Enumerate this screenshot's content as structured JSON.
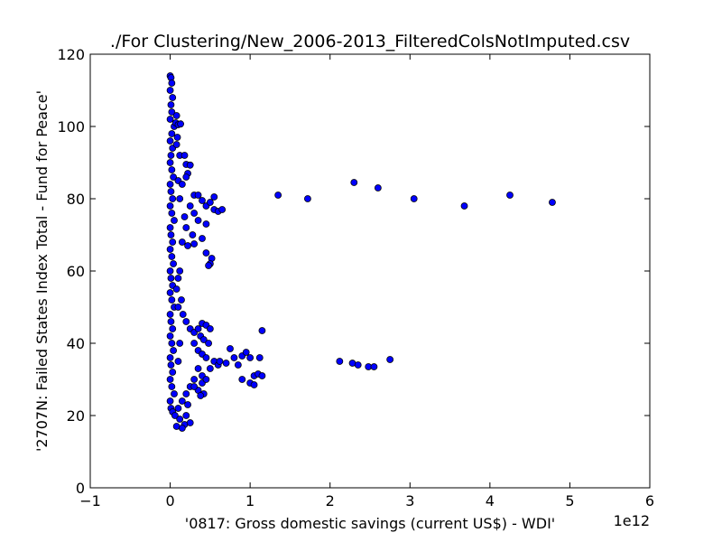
{
  "chart_data": {
    "type": "scatter",
    "title": "./For Clustering/New_2006-2013_FilteredColsNotImputed.csv",
    "xlabel": "'0817: Gross domestic savings  (current US$) - WDI'",
    "ylabel": "'2707N: Failed States Index Total - Fund for Peace'",
    "x_offset_label": "1e12",
    "xlim": [
      -1,
      6
    ],
    "ylim": [
      0,
      120
    ],
    "x_ticks": [
      -1,
      0,
      1,
      2,
      3,
      4,
      5,
      6
    ],
    "x_tick_labels": [
      "−1",
      "0",
      "1",
      "2",
      "3",
      "4",
      "5",
      "6"
    ],
    "y_ticks": [
      0,
      20,
      40,
      60,
      80,
      100,
      120
    ],
    "y_tick_labels": [
      "0",
      "20",
      "40",
      "60",
      "80",
      "100",
      "120"
    ],
    "grid": false,
    "marker_color": "#0000ff",
    "marker_edge_color": "#000000",
    "x_unit_note": "x values in units of 1e12",
    "series": [
      {
        "points": [
          [
            0.0,
            114
          ],
          [
            0.01,
            113.5
          ],
          [
            0.02,
            112
          ],
          [
            0.0,
            110
          ],
          [
            0.03,
            108
          ],
          [
            0.01,
            106
          ],
          [
            0.02,
            104
          ],
          [
            0.0,
            102
          ],
          [
            0.05,
            100
          ],
          [
            0.02,
            98
          ],
          [
            0.0,
            96
          ],
          [
            0.03,
            94
          ],
          [
            0.01,
            92
          ],
          [
            0.0,
            90
          ],
          [
            0.02,
            88
          ],
          [
            0.04,
            86
          ],
          [
            0.0,
            84
          ],
          [
            0.01,
            82
          ],
          [
            0.03,
            80
          ],
          [
            0.0,
            78
          ],
          [
            0.02,
            76
          ],
          [
            0.05,
            74
          ],
          [
            0.0,
            72
          ],
          [
            0.01,
            70
          ],
          [
            0.03,
            68
          ],
          [
            0.0,
            66
          ],
          [
            0.02,
            64
          ],
          [
            0.04,
            62
          ],
          [
            0.0,
            60
          ],
          [
            0.01,
            58
          ],
          [
            0.03,
            56
          ],
          [
            0.0,
            54
          ],
          [
            0.02,
            52
          ],
          [
            0.05,
            50
          ],
          [
            0.0,
            48
          ],
          [
            0.01,
            46
          ],
          [
            0.03,
            44
          ],
          [
            0.0,
            42
          ],
          [
            0.02,
            40
          ],
          [
            0.04,
            38
          ],
          [
            0.0,
            36
          ],
          [
            0.01,
            34
          ],
          [
            0.03,
            32
          ],
          [
            0.0,
            30
          ],
          [
            0.02,
            28
          ],
          [
            0.05,
            26
          ],
          [
            0.0,
            24
          ],
          [
            0.01,
            22
          ],
          [
            0.03,
            21
          ],
          [
            0.06,
            20
          ],
          [
            0.08,
            103
          ],
          [
            0.07,
            101
          ],
          [
            0.1,
            100.5
          ],
          [
            0.13,
            100.7
          ],
          [
            0.09,
            97
          ],
          [
            0.08,
            95
          ],
          [
            0.12,
            92
          ],
          [
            0.18,
            92
          ],
          [
            0.2,
            89.5
          ],
          [
            0.25,
            89.3
          ],
          [
            0.22,
            87
          ],
          [
            0.1,
            85
          ],
          [
            0.15,
            84
          ],
          [
            0.2,
            86
          ],
          [
            0.12,
            80
          ],
          [
            0.3,
            81
          ],
          [
            0.35,
            81
          ],
          [
            0.4,
            79.5
          ],
          [
            0.45,
            78
          ],
          [
            0.5,
            79
          ],
          [
            0.55,
            80.5
          ],
          [
            0.55,
            77
          ],
          [
            0.6,
            76.5
          ],
          [
            0.65,
            77
          ],
          [
            0.25,
            78
          ],
          [
            0.3,
            76
          ],
          [
            0.18,
            75
          ],
          [
            0.35,
            74
          ],
          [
            0.45,
            73
          ],
          [
            0.2,
            72
          ],
          [
            0.28,
            70
          ],
          [
            0.4,
            69
          ],
          [
            0.15,
            68
          ],
          [
            0.22,
            67
          ],
          [
            0.3,
            67.5
          ],
          [
            0.45,
            65
          ],
          [
            0.52,
            63.5
          ],
          [
            0.5,
            62
          ],
          [
            0.48,
            61.5
          ],
          [
            0.12,
            60
          ],
          [
            0.1,
            58
          ],
          [
            0.08,
            55
          ],
          [
            0.14,
            52
          ],
          [
            0.1,
            50
          ],
          [
            0.16,
            48
          ],
          [
            0.2,
            46
          ],
          [
            0.25,
            44
          ],
          [
            0.3,
            43
          ],
          [
            0.35,
            44
          ],
          [
            0.4,
            45.5
          ],
          [
            0.45,
            45
          ],
          [
            0.38,
            42
          ],
          [
            0.5,
            44
          ],
          [
            0.3,
            40
          ],
          [
            0.42,
            41
          ],
          [
            0.48,
            40
          ],
          [
            0.35,
            38
          ],
          [
            0.4,
            37
          ],
          [
            0.45,
            36
          ],
          [
            0.55,
            35
          ],
          [
            0.6,
            34
          ],
          [
            0.5,
            33
          ],
          [
            0.62,
            35
          ],
          [
            0.7,
            34.5
          ],
          [
            0.75,
            38.5
          ],
          [
            0.8,
            36
          ],
          [
            0.85,
            34
          ],
          [
            0.9,
            36.5
          ],
          [
            0.95,
            37.5
          ],
          [
            1.0,
            36
          ],
          [
            1.05,
            31
          ],
          [
            1.1,
            31.5
          ],
          [
            1.15,
            31
          ],
          [
            1.0,
            29
          ],
          [
            1.05,
            28.5
          ],
          [
            0.9,
            30
          ],
          [
            1.15,
            43.5
          ],
          [
            1.12,
            36
          ],
          [
            0.35,
            33
          ],
          [
            0.4,
            31
          ],
          [
            0.3,
            30
          ],
          [
            0.25,
            28
          ],
          [
            0.35,
            27
          ],
          [
            0.42,
            26
          ],
          [
            0.38,
            25.5
          ],
          [
            0.2,
            26
          ],
          [
            0.15,
            24
          ],
          [
            0.1,
            22
          ],
          [
            0.2,
            20
          ],
          [
            0.12,
            19
          ],
          [
            0.18,
            17.5
          ],
          [
            0.25,
            18
          ],
          [
            0.08,
            17
          ],
          [
            0.15,
            16.5
          ],
          [
            0.22,
            23
          ],
          [
            0.3,
            28
          ],
          [
            0.4,
            29
          ],
          [
            0.45,
            30
          ],
          [
            0.1,
            35
          ],
          [
            0.12,
            40
          ],
          [
            1.35,
            81
          ],
          [
            1.72,
            80
          ],
          [
            2.3,
            84.5
          ],
          [
            2.6,
            83
          ],
          [
            3.05,
            80
          ],
          [
            3.68,
            78
          ],
          [
            4.25,
            81
          ],
          [
            4.78,
            79
          ],
          [
            2.12,
            35
          ],
          [
            2.28,
            34.5
          ],
          [
            2.35,
            34
          ],
          [
            2.48,
            33.5
          ],
          [
            2.55,
            33.5
          ],
          [
            2.75,
            35.5
          ]
        ]
      }
    ]
  }
}
